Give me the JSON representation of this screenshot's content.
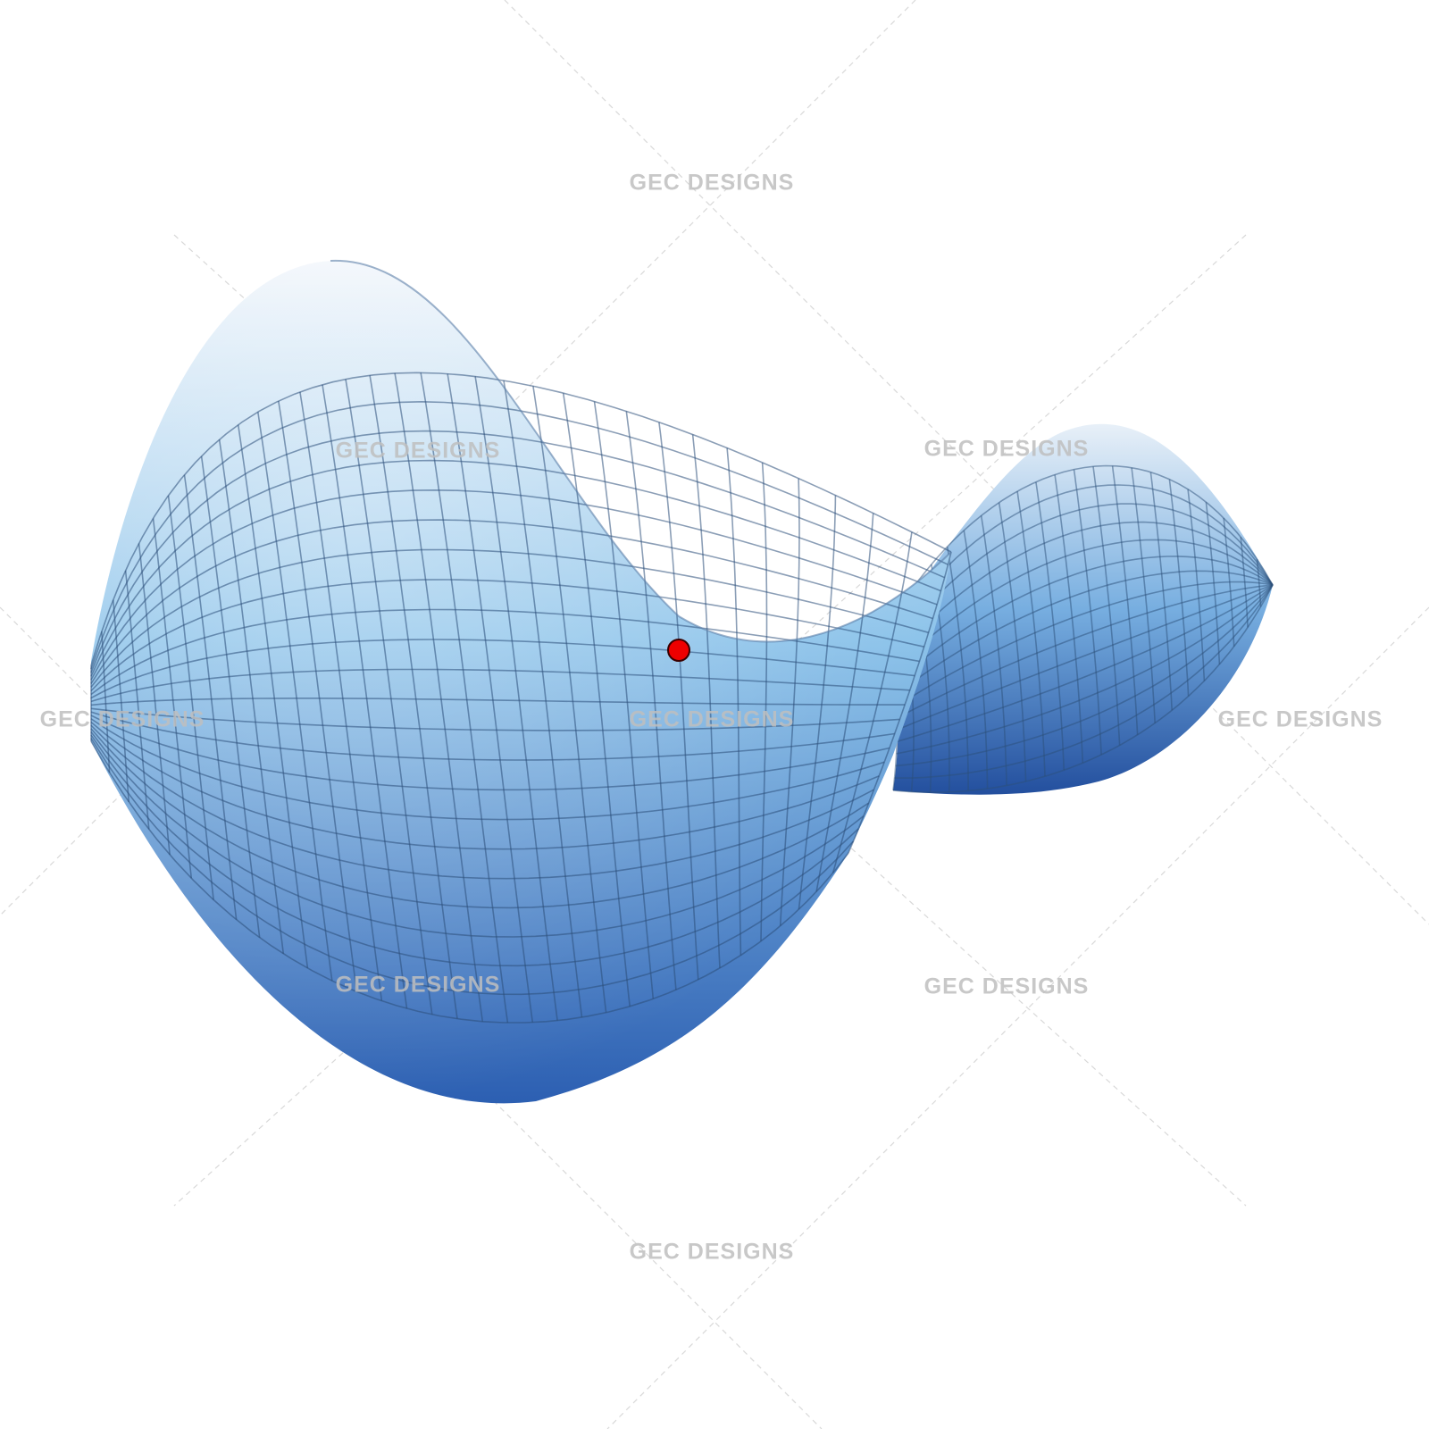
{
  "figure": {
    "subject": "saddle-surface",
    "surface_colors": {
      "top": "#f2f6fb",
      "middle": "#8cc3ea",
      "bottom": "#2c5fb2",
      "grid_line": "#2b4f7a"
    },
    "point_color": "#ee0000"
  },
  "watermarks": [
    {
      "text": "GEC DESIGNS"
    },
    {
      "text": "GEC DESIGNS"
    },
    {
      "text": "GEC DESIGNS"
    },
    {
      "text": "GEC DESIGNS"
    },
    {
      "text": "GEC DESIGNS"
    },
    {
      "text": "GEC DESIGNS"
    },
    {
      "text": "GEC DESIGNS"
    },
    {
      "text": "GEC DESIGNS"
    },
    {
      "text": "GEC DESIGNS"
    }
  ]
}
